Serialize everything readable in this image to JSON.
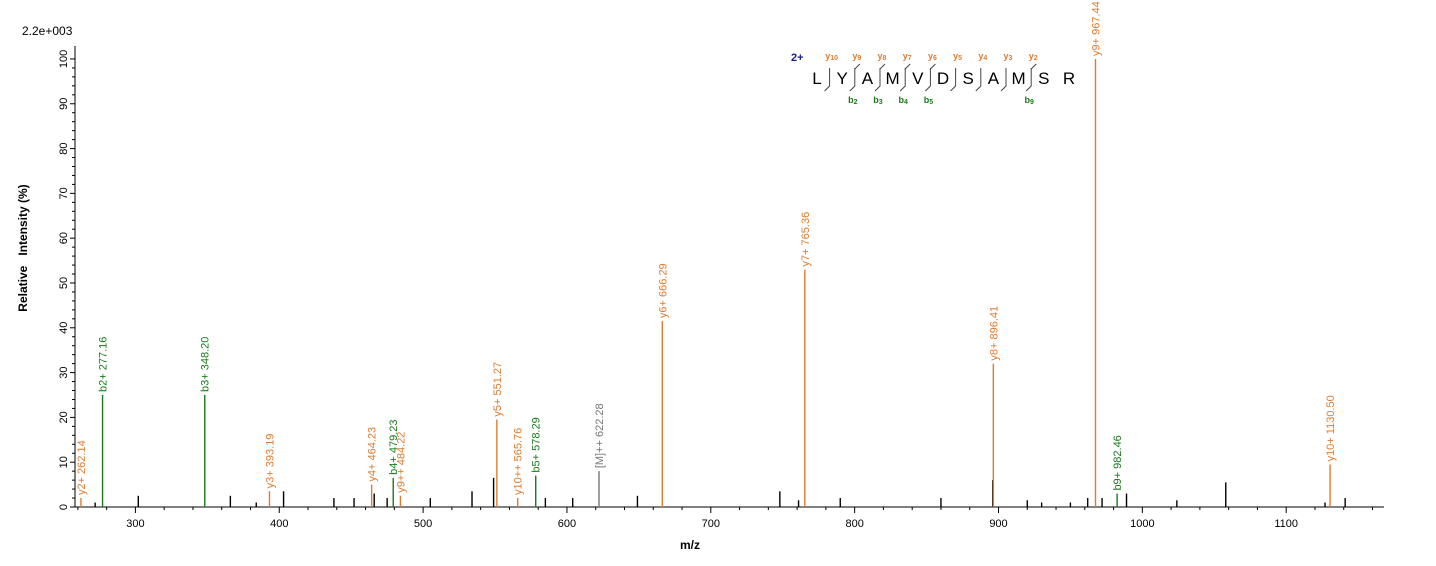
{
  "chart_data": {
    "type": "bar",
    "scale_label": "2.2e+003",
    "xlabel": "m/z",
    "ylabel": "Relative   Intensity (%)",
    "xlim": [
      258,
      1168
    ],
    "ylim": [
      0,
      102
    ],
    "xticks": [
      300,
      400,
      500,
      600,
      700,
      800,
      900,
      1000,
      1100
    ],
    "yticks": [
      0,
      10,
      20,
      30,
      40,
      50,
      60,
      70,
      80,
      90,
      100
    ],
    "colors": {
      "y": "#e07b2e",
      "b": "#1a7a1a",
      "precursor": "#777777",
      "unassigned": "#000000",
      "charge": "#1a1a8c"
    },
    "annotated_peaks": [
      {
        "mz": 262.14,
        "intensity": 2,
        "label": "y2+ 262.14",
        "ion": "y"
      },
      {
        "mz": 277.16,
        "intensity": 25,
        "label": "b2+ 277.16",
        "ion": "b"
      },
      {
        "mz": 348.2,
        "intensity": 25,
        "label": "b3+ 348.20",
        "ion": "b"
      },
      {
        "mz": 393.19,
        "intensity": 3.5,
        "label": "y3+ 393.19",
        "ion": "y"
      },
      {
        "mz": 464.23,
        "intensity": 5,
        "label": "y4+ 464.23",
        "ion": "y"
      },
      {
        "mz": 479.23,
        "intensity": 6.5,
        "label": "b4+ 479.23",
        "ion": "b"
      },
      {
        "mz": 484.22,
        "intensity": 2.5,
        "label": "y9++ 484.22",
        "ion": "y"
      },
      {
        "mz": 551.27,
        "intensity": 19.5,
        "label": "y5+ 551.27",
        "ion": "y"
      },
      {
        "mz": 565.76,
        "intensity": 2,
        "label": "y10++ 565.76",
        "ion": "y"
      },
      {
        "mz": 578.29,
        "intensity": 7,
        "label": "b5+ 578.29",
        "ion": "b"
      },
      {
        "mz": 622.28,
        "intensity": 8,
        "label": "[M]++ 622.28",
        "ion": "precursor"
      },
      {
        "mz": 666.29,
        "intensity": 41.5,
        "label": "y6+ 666.29",
        "ion": "y"
      },
      {
        "mz": 765.36,
        "intensity": 53,
        "label": "y7+ 765.36",
        "ion": "y"
      },
      {
        "mz": 896.41,
        "intensity": 32,
        "label": "y8+ 896.41",
        "ion": "y"
      },
      {
        "mz": 967.44,
        "intensity": 100,
        "label": "y9+ 967.44",
        "ion": "y"
      },
      {
        "mz": 982.46,
        "intensity": 3,
        "label": "b9+ 982.46",
        "ion": "b"
      },
      {
        "mz": 1130.5,
        "intensity": 9.5,
        "label": "y10+ 1130.50",
        "ion": "y"
      }
    ],
    "unassigned_peaks": [
      {
        "mz": 272,
        "intensity": 1
      },
      {
        "mz": 302,
        "intensity": 2.5
      },
      {
        "mz": 366,
        "intensity": 2.5
      },
      {
        "mz": 384,
        "intensity": 1
      },
      {
        "mz": 403,
        "intensity": 3.5
      },
      {
        "mz": 438,
        "intensity": 2
      },
      {
        "mz": 452,
        "intensity": 2
      },
      {
        "mz": 466,
        "intensity": 3
      },
      {
        "mz": 475,
        "intensity": 2
      },
      {
        "mz": 505,
        "intensity": 2
      },
      {
        "mz": 534,
        "intensity": 3.5
      },
      {
        "mz": 549,
        "intensity": 6.5
      },
      {
        "mz": 585,
        "intensity": 2
      },
      {
        "mz": 604,
        "intensity": 2
      },
      {
        "mz": 649,
        "intensity": 2.5
      },
      {
        "mz": 748,
        "intensity": 3.5
      },
      {
        "mz": 761,
        "intensity": 1.5
      },
      {
        "mz": 790,
        "intensity": 2
      },
      {
        "mz": 860,
        "intensity": 2
      },
      {
        "mz": 896,
        "intensity": 6
      },
      {
        "mz": 920,
        "intensity": 1.5
      },
      {
        "mz": 930,
        "intensity": 1
      },
      {
        "mz": 950,
        "intensity": 1
      },
      {
        "mz": 962,
        "intensity": 2
      },
      {
        "mz": 972,
        "intensity": 2
      },
      {
        "mz": 989,
        "intensity": 3
      },
      {
        "mz": 1024,
        "intensity": 1.5
      },
      {
        "mz": 1058,
        "intensity": 5.5
      },
      {
        "mz": 1127,
        "intensity": 1
      },
      {
        "mz": 1141,
        "intensity": 2
      }
    ],
    "sequence": {
      "charge": "2+",
      "residues": [
        "L",
        "Y",
        "A",
        "M",
        "V",
        "D",
        "S",
        "A",
        "M",
        "S",
        "R"
      ],
      "y_ions": [
        {
          "after": 0,
          "label": "y",
          "sub": "10"
        },
        {
          "after": 1,
          "label": "y",
          "sub": "9"
        },
        {
          "after": 2,
          "label": "y",
          "sub": "8"
        },
        {
          "after": 3,
          "label": "y",
          "sub": "7"
        },
        {
          "after": 4,
          "label": "y",
          "sub": "6"
        },
        {
          "after": 5,
          "label": "y",
          "sub": "5"
        },
        {
          "after": 6,
          "label": "y",
          "sub": "4"
        },
        {
          "after": 7,
          "label": "y",
          "sub": "3"
        },
        {
          "after": 8,
          "label": "y",
          "sub": "2"
        }
      ],
      "b_ions": [
        {
          "after": 1,
          "label": "b",
          "sub": "2"
        },
        {
          "after": 2,
          "label": "b",
          "sub": "3"
        },
        {
          "after": 3,
          "label": "b",
          "sub": "4"
        },
        {
          "after": 4,
          "label": "b",
          "sub": "5"
        },
        {
          "after": 8,
          "label": "b",
          "sub": "9"
        }
      ]
    }
  }
}
